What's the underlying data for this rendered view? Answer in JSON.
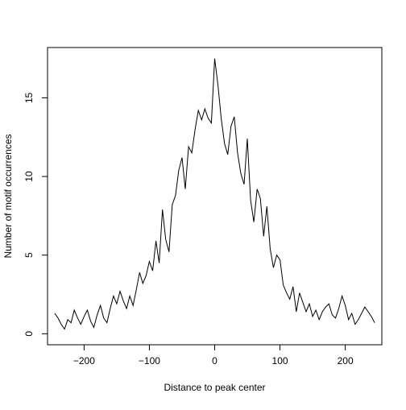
{
  "chart_data": {
    "type": "line",
    "title": "",
    "xlabel": "Distance to peak center",
    "ylabel": "Number of motif occurrences",
    "xlim": [
      -256,
      256
    ],
    "ylim": [
      -0.7,
      18.2
    ],
    "xticks": [
      -200,
      -100,
      0,
      100,
      200
    ],
    "yticks": [
      0,
      5,
      10,
      15
    ],
    "grid": false,
    "legend": "none",
    "line_color": "#000000",
    "x": [
      -245,
      -240,
      -235,
      -230,
      -225,
      -220,
      -215,
      -210,
      -205,
      -200,
      -195,
      -190,
      -185,
      -180,
      -175,
      -170,
      -165,
      -160,
      -155,
      -150,
      -145,
      -140,
      -135,
      -130,
      -125,
      -120,
      -115,
      -110,
      -105,
      -100,
      -95,
      -90,
      -85,
      -80,
      -75,
      -70,
      -65,
      -60,
      -55,
      -50,
      -45,
      -40,
      -35,
      -30,
      -25,
      -20,
      -15,
      -10,
      -5,
      0,
      5,
      10,
      15,
      20,
      25,
      30,
      35,
      40,
      45,
      50,
      55,
      60,
      65,
      70,
      75,
      80,
      85,
      90,
      95,
      100,
      105,
      110,
      115,
      120,
      125,
      130,
      135,
      140,
      145,
      150,
      155,
      160,
      165,
      170,
      175,
      180,
      185,
      190,
      195,
      200,
      205,
      210,
      215,
      220,
      225,
      230,
      235,
      240,
      245
    ],
    "values": [
      1.3,
      1.0,
      0.6,
      0.3,
      0.9,
      0.7,
      1.5,
      1.0,
      0.6,
      1.1,
      1.5,
      0.8,
      0.4,
      1.2,
      1.8,
      1.0,
      0.7,
      1.6,
      2.4,
      1.9,
      2.7,
      2.1,
      1.6,
      2.4,
      1.8,
      2.8,
      3.9,
      3.2,
      3.7,
      4.6,
      4.0,
      5.9,
      4.5,
      7.9,
      6.0,
      5.2,
      8.2,
      8.8,
      10.4,
      11.2,
      9.2,
      11.9,
      11.5,
      13.0,
      14.2,
      13.6,
      14.3,
      13.7,
      13.4,
      17.5,
      15.8,
      13.7,
      12.1,
      11.4,
      13.2,
      13.8,
      11.5,
      10.2,
      9.5,
      12.4,
      8.5,
      7.1,
      9.2,
      8.6,
      6.2,
      8.1,
      5.4,
      4.2,
      5.0,
      4.7,
      3.1,
      2.6,
      2.2,
      3.0,
      1.4,
      2.6,
      2.0,
      1.4,
      1.9,
      1.1,
      1.5,
      0.9,
      1.4,
      1.7,
      1.9,
      1.2,
      1.0,
      1.6,
      2.4,
      1.8,
      0.9,
      1.3,
      0.6,
      0.9,
      1.3,
      1.7,
      1.4,
      1.1,
      0.7
    ]
  }
}
